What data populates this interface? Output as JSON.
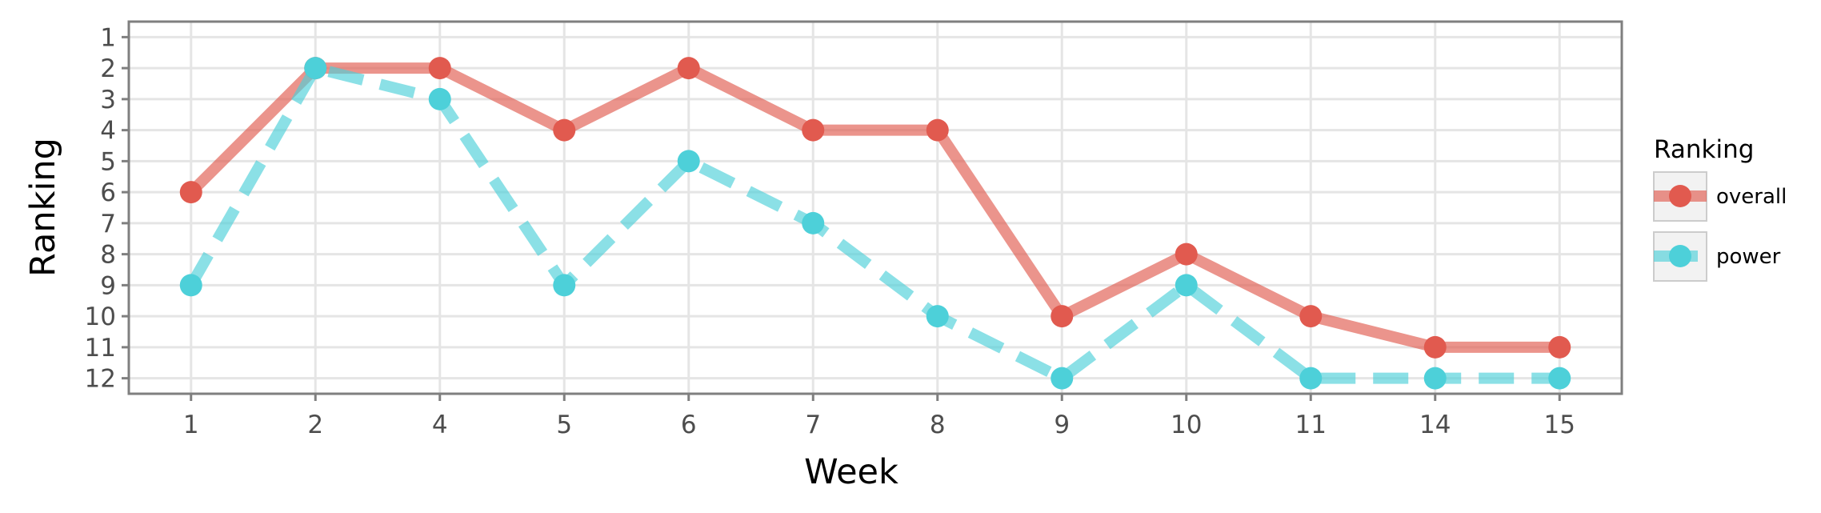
{
  "chart_data": {
    "type": "line",
    "xlabel": "Week",
    "ylabel": "Ranking",
    "categories": [
      "1",
      "2",
      "4",
      "5",
      "6",
      "7",
      "8",
      "9",
      "10",
      "11",
      "14",
      "15"
    ],
    "y_ticks": [
      "1",
      "2",
      "3",
      "4",
      "5",
      "6",
      "7",
      "8",
      "9",
      "10",
      "11",
      "12"
    ],
    "ylim": [
      12.5,
      0.5
    ],
    "y_reversed": true,
    "grid": true,
    "legend": {
      "title": "Ranking",
      "position": "right"
    },
    "series": [
      {
        "name": "overall",
        "color": "#e15a4f",
        "line_style": "solid",
        "values": [
          6,
          2,
          2,
          4,
          2,
          4,
          4,
          10,
          8,
          10,
          11,
          11
        ]
      },
      {
        "name": "power",
        "color": "#4dd0d9",
        "line_style": "dashed",
        "values": [
          9,
          2,
          3,
          9,
          5,
          7,
          10,
          12,
          9,
          12,
          12,
          12
        ]
      }
    ]
  }
}
